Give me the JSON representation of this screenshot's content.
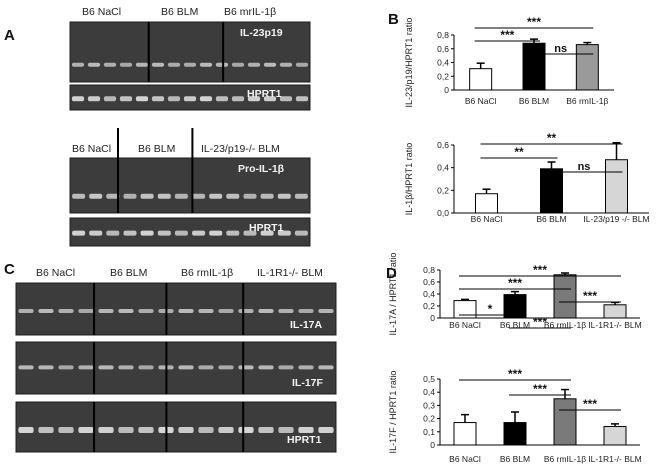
{
  "panels": [
    {
      "letter": "A"
    },
    {
      "letter": "B"
    },
    {
      "letter": "C"
    },
    {
      "letter": "D"
    }
  ],
  "gels": {
    "A1": {
      "headers": [
        "B6 NaCl",
        "B6 BLM",
        "B6 mrIL-1β"
      ],
      "strips": [
        {
          "label": "IL-23p19"
        },
        {
          "label": "HPRT1"
        }
      ]
    },
    "A2": {
      "headers": [
        "B6 NaCl",
        "B6 BLM",
        "IL-23/p19-/- BLM"
      ],
      "strips": [
        {
          "label": "Pro-IL-1β"
        },
        {
          "label": "HPRT1"
        }
      ]
    },
    "C": {
      "headers": [
        "B6  NaCl",
        "B6  BLM",
        "B6 rmIL-1β",
        "IL-1R1-/- BLM"
      ],
      "strips": [
        {
          "label": "IL-17A"
        },
        {
          "label": "IL-17F"
        },
        {
          "label": "HPRT1"
        }
      ]
    }
  },
  "colors": {
    "white": "#ffffff",
    "black": "#000000",
    "gray": "#9a9a9a",
    "lightgray": "#d6d6d6",
    "darkgray": "#7a7a7a"
  },
  "chart_data": [
    {
      "id": "B1",
      "type": "bar",
      "ylabel": "IL-23/p19/HPRT1 ratio",
      "ylim": [
        0,
        0.8
      ],
      "yticks": [
        "0",
        "0,2",
        "0,4",
        "0,6",
        "0,8"
      ],
      "categories": [
        "B6 NaCl",
        "B6 BLM",
        "B6 rmIL-1β"
      ],
      "values": [
        0.31,
        0.68,
        0.66
      ],
      "errors": [
        0.08,
        0.06,
        0.03
      ],
      "fills": [
        "#ffffff",
        "#000000",
        "#9a9a9a"
      ],
      "significance": [
        {
          "from": 0,
          "to": 2,
          "label": "***"
        },
        {
          "from": 0,
          "to": 1,
          "label": "***"
        },
        {
          "from": 1,
          "to": 2,
          "label": "ns"
        }
      ]
    },
    {
      "id": "B2",
      "type": "bar",
      "ylabel": "IL-1β/HPRT1 ratio",
      "ylim": [
        0,
        0.6
      ],
      "yticks": [
        "0,0",
        "0,2",
        "0,4",
        "0,6"
      ],
      "categories": [
        "B6 NaCl",
        "B6 BLM",
        "IL-23/p19 -/- BLM"
      ],
      "values": [
        0.17,
        0.39,
        0.47
      ],
      "errors": [
        0.04,
        0.06,
        0.15
      ],
      "fills": [
        "#ffffff",
        "#000000",
        "#d6d6d6"
      ],
      "significance": [
        {
          "from": 0,
          "to": 2,
          "label": "**"
        },
        {
          "from": 0,
          "to": 1,
          "label": "**"
        },
        {
          "from": 1,
          "to": 2,
          "label": "ns"
        }
      ]
    },
    {
      "id": "D1",
      "type": "bar",
      "ylabel": "IL-17A / HPRT1 ratio",
      "ylim": [
        0,
        0.8
      ],
      "yticks": [
        "0",
        "0,2",
        "0,4",
        "0,6",
        "0,8"
      ],
      "categories": [
        "B6 NaCl",
        "B6 BLM",
        "B6 rmIL-1β",
        "IL-1R1-/- BLM"
      ],
      "values": [
        0.29,
        0.39,
        0.72,
        0.22
      ],
      "errors": [
        0.02,
        0.05,
        0.03,
        0.04
      ],
      "fills": [
        "#ffffff",
        "#000000",
        "#7a7a7a",
        "#d6d6d6"
      ],
      "significance": [
        {
          "from": 0,
          "to": 3,
          "label": "***"
        },
        {
          "from": 0,
          "to": 2,
          "label": "***"
        },
        {
          "from": 2,
          "to": 3,
          "label": "***"
        },
        {
          "from": 0,
          "to": 1,
          "label": "*"
        },
        {
          "from": 1,
          "to": 2,
          "label": "***"
        }
      ]
    },
    {
      "id": "D2",
      "type": "bar",
      "ylabel": "IL-17F / HPRT1 ratio",
      "ylim": [
        0,
        0.5
      ],
      "yticks": [
        "0",
        "0,1",
        "0,2",
        "0,3",
        "0,4",
        "0,5"
      ],
      "categories": [
        "B6 NaCl",
        "B6 BLM",
        "B6 rmIL-1β",
        "IL-1R1-/- BLM"
      ],
      "values": [
        0.17,
        0.17,
        0.35,
        0.14
      ],
      "errors": [
        0.06,
        0.08,
        0.07,
        0.02
      ],
      "fills": [
        "#ffffff",
        "#000000",
        "#7a7a7a",
        "#d6d6d6"
      ],
      "significance": [
        {
          "from": 0,
          "to": 2,
          "label": "***"
        },
        {
          "from": 1,
          "to": 2,
          "label": "***"
        },
        {
          "from": 2,
          "to": 3,
          "label": "***"
        }
      ]
    }
  ]
}
